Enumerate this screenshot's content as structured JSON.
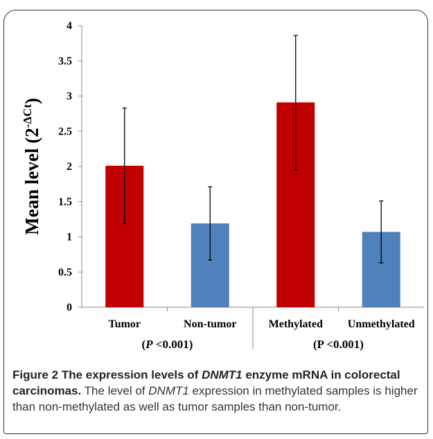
{
  "chart_data": {
    "type": "bar",
    "categories": [
      "Tumor",
      "Non-tumor",
      "Methylated",
      "Unmethylated"
    ],
    "values": [
      2.01,
      1.19,
      2.91,
      1.07
    ],
    "error_bars": [
      {
        "low": 1.19,
        "high": 2.83
      },
      {
        "low": 0.67,
        "high": 1.71
      },
      {
        "low": 1.95,
        "high": 3.86
      },
      {
        "low": 0.63,
        "high": 1.51
      }
    ],
    "bar_colors": [
      "#c00000",
      "#4f81bd",
      "#c00000",
      "#4f81bd"
    ],
    "ylabel_main": "Mean level (2",
    "ylabel_sup": "-ΔCt",
    "ylabel_close": ")",
    "ylim": [
      0,
      4
    ],
    "yticks": [
      "0",
      "0.5",
      "1",
      "1.5",
      "2",
      "2.5",
      "3",
      "3.5",
      "4"
    ],
    "group_labels": [
      {
        "open": "(",
        "p": "P",
        "rest": " <0.001)"
      },
      {
        "open": "(",
        "p": "P",
        "rest": " <0.001)"
      }
    ],
    "grid": false
  },
  "caption": {
    "figure_label": "Figure 2",
    "title_pre": "The expression levels of ",
    "title_gene": "DNMT1",
    "title_post": " enzyme mRNA in colorectal carcinomas.",
    "body_pre": " The level of ",
    "body_gene": "DNMT1",
    "body_post": " expression in methylated samples is higher than non-methylated as well as tumor samples than non-tumor."
  }
}
